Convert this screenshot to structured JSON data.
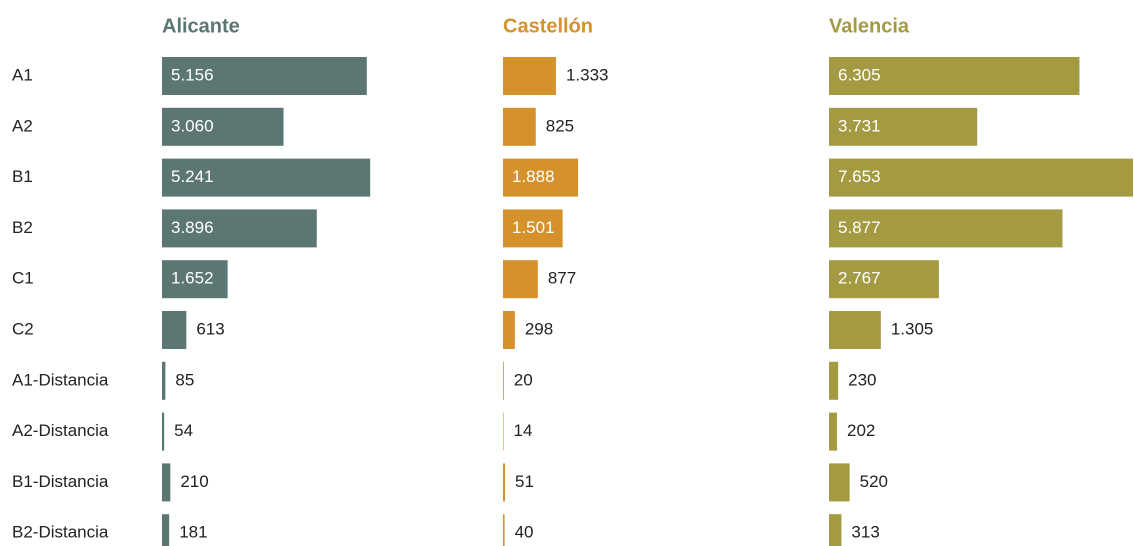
{
  "chart_data": {
    "type": "bar",
    "orientation": "horizontal",
    "categories": [
      "A1",
      "A2",
      "B1",
      "B2",
      "C1",
      "C2",
      "A1-Distancia",
      "A2-Distancia",
      "B1-Distancia",
      "B2-Distancia"
    ],
    "series": [
      {
        "name": "Alicante",
        "color": "#5c7674",
        "values": [
          5156,
          3060,
          5241,
          3896,
          1652,
          613,
          85,
          54,
          210,
          181
        ],
        "value_labels": [
          "5.156",
          "3.060",
          "5.241",
          "3.896",
          "1.652",
          "613",
          "85",
          "54",
          "210",
          "181"
        ]
      },
      {
        "name": "Castellón",
        "color": "#d4912c",
        "values": [
          1333,
          825,
          1888,
          1501,
          877,
          298,
          20,
          14,
          51,
          40
        ],
        "value_labels": [
          "1.333",
          "825",
          "1.888",
          "1.501",
          "877",
          "298",
          "20",
          "14",
          "51",
          "40"
        ]
      },
      {
        "name": "Valencia",
        "color": "#a39a42",
        "values": [
          6305,
          3731,
          7653,
          5877,
          2767,
          1305,
          230,
          202,
          520,
          313
        ],
        "value_labels": [
          "6.305",
          "3.731",
          "7.653",
          "5.877",
          "2.767",
          "1.305",
          "230",
          "202",
          "520",
          "313"
        ]
      }
    ]
  }
}
